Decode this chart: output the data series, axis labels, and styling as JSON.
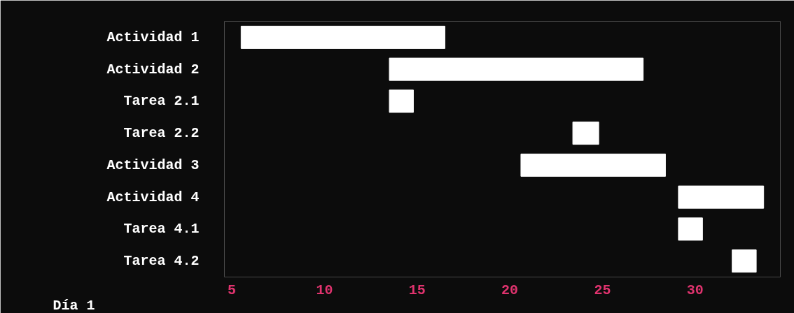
{
  "chart_data": {
    "type": "bar",
    "orientation": "horizontal",
    "xlabel": "Día 1",
    "categories": [
      "Actividad 1",
      "Actividad 2",
      "Tarea 2.1",
      "Tarea 2.2",
      "Actividad 3",
      "Actividad 4",
      "Tarea 4.1",
      "Tarea 4.2"
    ],
    "base": [
      5.5,
      13.5,
      13.5,
      23.4,
      20.6,
      29.1,
      29.1,
      32.0
    ],
    "values": [
      11,
      13.7,
      1.3,
      1.4,
      7.8,
      4.6,
      1.3,
      1.3
    ],
    "color": "#ffffff",
    "xlim": [
      4.6,
      34.6
    ],
    "xticks": [
      5,
      10,
      15,
      20,
      25,
      30
    ],
    "grid": false
  }
}
